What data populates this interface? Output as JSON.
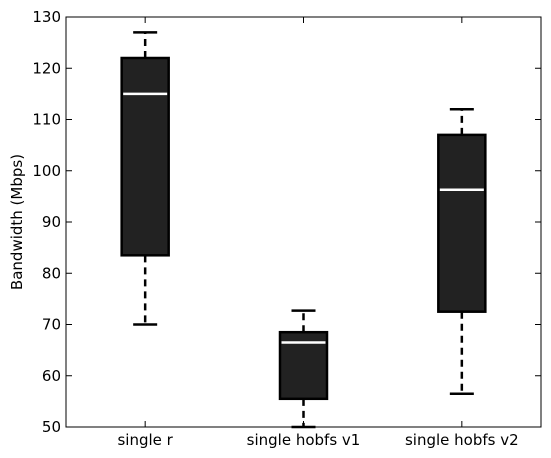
{
  "chart_data": {
    "type": "box",
    "title": "",
    "xlabel": "",
    "ylabel": "Bandwidth (Mbps)",
    "ylim": [
      50,
      130
    ],
    "yticks": [
      50,
      60,
      70,
      80,
      90,
      100,
      110,
      120,
      130
    ],
    "categories": [
      "single r",
      "single hobfs v1",
      "single hobfs v2"
    ],
    "boxes": [
      {
        "category": "single r",
        "whisker_low": 70,
        "q1": 83.5,
        "median": 115,
        "q3": 122,
        "whisker_high": 127
      },
      {
        "category": "single hobfs v1",
        "whisker_low": 50,
        "q1": 55.5,
        "median": 66.5,
        "q3": 68.5,
        "whisker_high": 72.7
      },
      {
        "category": "single hobfs v2",
        "whisker_low": 56.5,
        "q1": 72.5,
        "median": 96.3,
        "q3": 107,
        "whisker_high": 112
      }
    ],
    "grid": false,
    "colors": {
      "box_fill": "#222222",
      "box_edge": "#000000",
      "median": "#ffffff",
      "whisker": "#000000"
    }
  }
}
